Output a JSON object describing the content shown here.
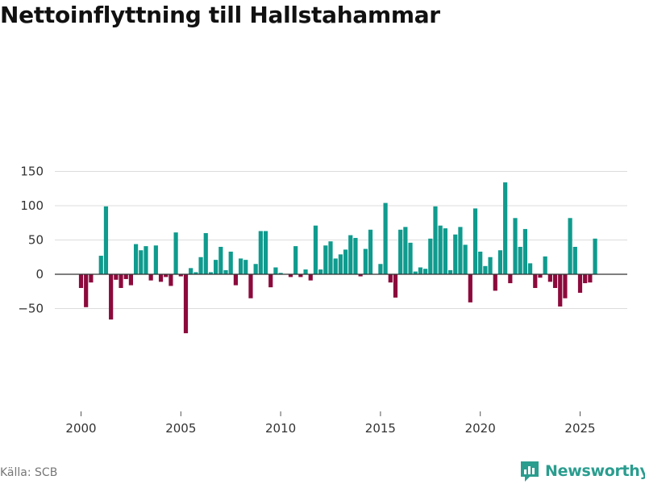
{
  "colors": {
    "positive": "#0f9b8e",
    "negative": "#8c0a3c",
    "grid": "#dcdcdc",
    "zero": "#333333",
    "brand": "#2a9d8f"
  },
  "footer": {
    "source": "Källa: SCB",
    "brand": "Newsworthy"
  },
  "brand_icon": "newsworthy-logo-icon",
  "chart_data": {
    "type": "bar",
    "title": "Nettoinflyttning till Hallstahammar",
    "xlabel": "",
    "ylabel": "",
    "xlim": [
      1999.0,
      2027.0
    ],
    "ylim": [
      -90,
      160
    ],
    "x_ticks": [
      "2000",
      "2005",
      "2010",
      "2015",
      "2020",
      "2025"
    ],
    "y_ticks": [
      "150",
      "100",
      "50",
      "0",
      "−50"
    ],
    "grid": true,
    "series": [
      {
        "name": "Nettoinflyttning",
        "x": [
          2000.0,
          2000.25,
          2000.5,
          2000.75,
          2001.0,
          2001.25,
          2001.5,
          2001.75,
          2002.0,
          2002.25,
          2002.5,
          2002.75,
          2003.0,
          2003.25,
          2003.5,
          2003.75,
          2004.0,
          2004.25,
          2004.5,
          2004.75,
          2005.0,
          2005.25,
          2005.5,
          2005.75,
          2006.0,
          2006.25,
          2006.5,
          2006.75,
          2007.0,
          2007.25,
          2007.5,
          2007.75,
          2008.0,
          2008.25,
          2008.5,
          2008.75,
          2009.0,
          2009.25,
          2009.5,
          2009.75,
          2010.0,
          2010.25,
          2010.5,
          2010.75,
          2011.0,
          2011.25,
          2011.5,
          2011.75,
          2012.0,
          2012.25,
          2012.5,
          2012.75,
          2013.0,
          2013.25,
          2013.5,
          2013.75,
          2014.0,
          2014.25,
          2014.5,
          2014.75,
          2015.0,
          2015.25,
          2015.5,
          2015.75,
          2016.0,
          2016.25,
          2016.5,
          2016.75,
          2017.0,
          2017.25,
          2017.5,
          2017.75,
          2018.0,
          2018.25,
          2018.5,
          2018.75,
          2019.0,
          2019.25,
          2019.5,
          2019.75,
          2020.0,
          2020.25,
          2020.5,
          2020.75,
          2021.0,
          2021.25,
          2021.5,
          2021.75,
          2022.0,
          2022.25,
          2022.5,
          2022.75,
          2023.0,
          2023.25,
          2023.5,
          2023.75,
          2024.0,
          2024.25,
          2024.5,
          2024.75,
          2025.0,
          2025.25,
          2025.5,
          2025.75
        ],
        "values": [
          -20,
          -48,
          -12,
          0,
          27,
          99,
          -66,
          -8,
          -20,
          -7,
          -16,
          44,
          35,
          41,
          -9,
          42,
          -11,
          -4,
          -17,
          61,
          -3,
          -86,
          9,
          3,
          25,
          60,
          3,
          21,
          40,
          6,
          33,
          -16,
          23,
          21,
          -35,
          15,
          63,
          63,
          -19,
          10,
          2,
          0,
          -4,
          41,
          -4,
          7,
          -9,
          71,
          7,
          42,
          48,
          23,
          29,
          36,
          57,
          53,
          -3,
          37,
          65,
          0,
          15,
          104,
          -12,
          -34,
          65,
          69,
          46,
          4,
          10,
          8,
          52,
          99,
          71,
          67,
          6,
          58,
          69,
          43,
          -41,
          96,
          33,
          12,
          25,
          -24,
          35,
          134,
          -13,
          82,
          40,
          66,
          16,
          -20,
          -5,
          26,
          -11,
          -20,
          -47,
          -35,
          82,
          40,
          -27,
          -13,
          -12,
          52
        ]
      }
    ]
  }
}
